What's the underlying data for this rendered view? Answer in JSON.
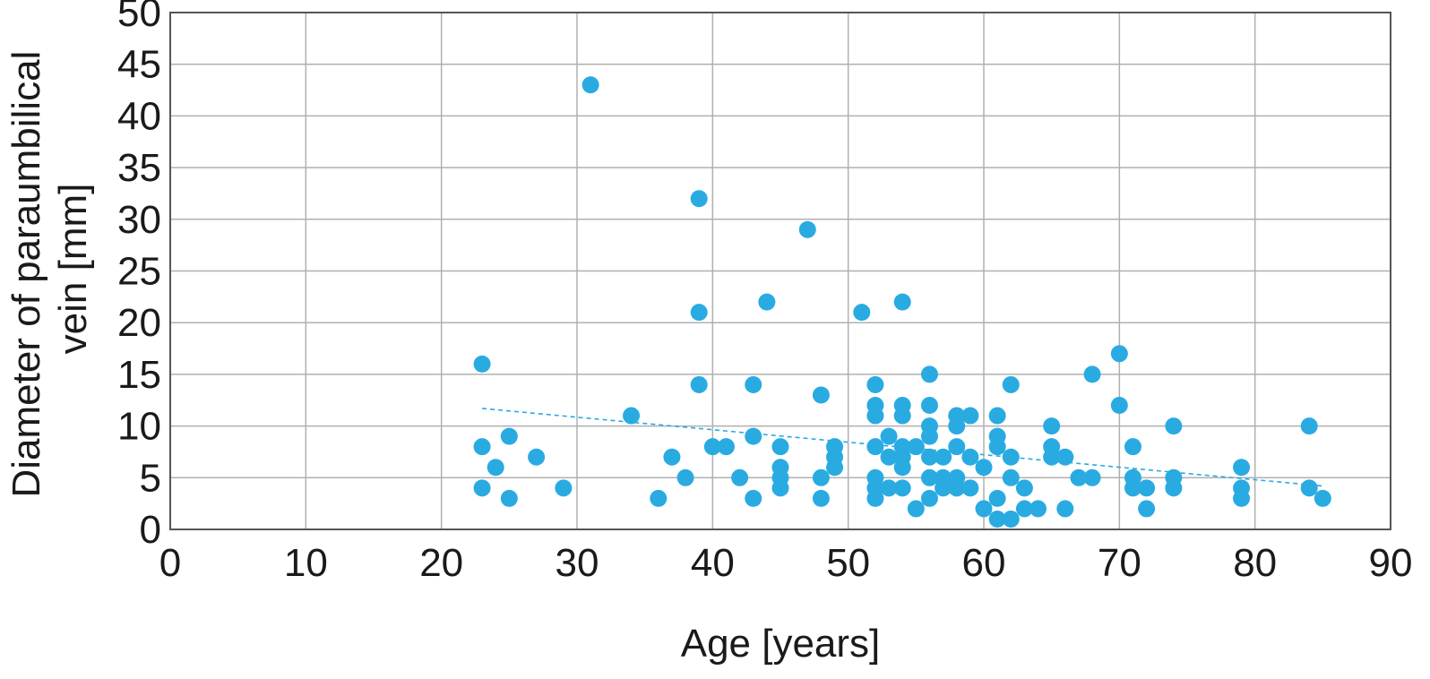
{
  "chart_data": {
    "type": "scatter",
    "title": "",
    "xlabel": "Age [years]",
    "ylabel_lines": [
      "Diameter of paraumbilical",
      "vein [mm]"
    ],
    "xlim": [
      0,
      90
    ],
    "ylim": [
      0,
      50
    ],
    "xticks": [
      "0",
      "10",
      "20",
      "30",
      "40",
      "50",
      "60",
      "70",
      "80",
      "90"
    ],
    "yticks": [
      "0",
      "5",
      "10",
      "15",
      "20",
      "25",
      "30",
      "35",
      "40",
      "45",
      "50"
    ],
    "grid": true,
    "legend": "none",
    "point_color": "#29abe2",
    "trend_color": "#29abe2",
    "trendline": {
      "style": "dashed",
      "x": [
        23,
        85
      ],
      "y": [
        11.7,
        4.2
      ]
    },
    "points": [
      {
        "x": 23,
        "y": 16
      },
      {
        "x": 23,
        "y": 8
      },
      {
        "x": 23,
        "y": 4
      },
      {
        "x": 24,
        "y": 6
      },
      {
        "x": 25,
        "y": 9
      },
      {
        "x": 25,
        "y": 3
      },
      {
        "x": 27,
        "y": 7
      },
      {
        "x": 29,
        "y": 4
      },
      {
        "x": 31,
        "y": 43
      },
      {
        "x": 34,
        "y": 11
      },
      {
        "x": 36,
        "y": 3
      },
      {
        "x": 37,
        "y": 7
      },
      {
        "x": 38,
        "y": 5
      },
      {
        "x": 39,
        "y": 32
      },
      {
        "x": 39,
        "y": 21
      },
      {
        "x": 39,
        "y": 14
      },
      {
        "x": 40,
        "y": 8
      },
      {
        "x": 41,
        "y": 8
      },
      {
        "x": 42,
        "y": 5
      },
      {
        "x": 43,
        "y": 14
      },
      {
        "x": 43,
        "y": 9
      },
      {
        "x": 43,
        "y": 3
      },
      {
        "x": 44,
        "y": 22
      },
      {
        "x": 45,
        "y": 8
      },
      {
        "x": 45,
        "y": 6
      },
      {
        "x": 45,
        "y": 5
      },
      {
        "x": 45,
        "y": 4
      },
      {
        "x": 47,
        "y": 29
      },
      {
        "x": 48,
        "y": 13
      },
      {
        "x": 48,
        "y": 5
      },
      {
        "x": 48,
        "y": 3
      },
      {
        "x": 49,
        "y": 8
      },
      {
        "x": 49,
        "y": 7
      },
      {
        "x": 49,
        "y": 6
      },
      {
        "x": 51,
        "y": 21
      },
      {
        "x": 52,
        "y": 14
      },
      {
        "x": 52,
        "y": 12
      },
      {
        "x": 52,
        "y": 11
      },
      {
        "x": 52,
        "y": 8
      },
      {
        "x": 52,
        "y": 5
      },
      {
        "x": 52,
        "y": 4
      },
      {
        "x": 52,
        "y": 3
      },
      {
        "x": 53,
        "y": 9
      },
      {
        "x": 53,
        "y": 7
      },
      {
        "x": 53,
        "y": 4
      },
      {
        "x": 54,
        "y": 22
      },
      {
        "x": 54,
        "y": 12
      },
      {
        "x": 54,
        "y": 11
      },
      {
        "x": 54,
        "y": 8
      },
      {
        "x": 54,
        "y": 7
      },
      {
        "x": 54,
        "y": 6
      },
      {
        "x": 54,
        "y": 4
      },
      {
        "x": 55,
        "y": 8
      },
      {
        "x": 55,
        "y": 2
      },
      {
        "x": 56,
        "y": 15
      },
      {
        "x": 56,
        "y": 12
      },
      {
        "x": 56,
        "y": 10
      },
      {
        "x": 56,
        "y": 9
      },
      {
        "x": 56,
        "y": 7
      },
      {
        "x": 56,
        "y": 5
      },
      {
        "x": 56,
        "y": 3
      },
      {
        "x": 57,
        "y": 7
      },
      {
        "x": 57,
        "y": 5
      },
      {
        "x": 57,
        "y": 4
      },
      {
        "x": 58,
        "y": 11
      },
      {
        "x": 58,
        "y": 10
      },
      {
        "x": 58,
        "y": 8
      },
      {
        "x": 58,
        "y": 5
      },
      {
        "x": 58,
        "y": 4
      },
      {
        "x": 59,
        "y": 11
      },
      {
        "x": 59,
        "y": 7
      },
      {
        "x": 59,
        "y": 4
      },
      {
        "x": 60,
        "y": 6
      },
      {
        "x": 60,
        "y": 2
      },
      {
        "x": 61,
        "y": 11
      },
      {
        "x": 61,
        "y": 9
      },
      {
        "x": 61,
        "y": 8
      },
      {
        "x": 61,
        "y": 3
      },
      {
        "x": 61,
        "y": 1
      },
      {
        "x": 62,
        "y": 14
      },
      {
        "x": 62,
        "y": 7
      },
      {
        "x": 62,
        "y": 5
      },
      {
        "x": 62,
        "y": 1
      },
      {
        "x": 63,
        "y": 4
      },
      {
        "x": 63,
        "y": 2
      },
      {
        "x": 64,
        "y": 2
      },
      {
        "x": 65,
        "y": 10
      },
      {
        "x": 65,
        "y": 8
      },
      {
        "x": 65,
        "y": 7
      },
      {
        "x": 66,
        "y": 7
      },
      {
        "x": 66,
        "y": 2
      },
      {
        "x": 67,
        "y": 5
      },
      {
        "x": 68,
        "y": 15
      },
      {
        "x": 68,
        "y": 5
      },
      {
        "x": 70,
        "y": 17
      },
      {
        "x": 70,
        "y": 12
      },
      {
        "x": 71,
        "y": 8
      },
      {
        "x": 71,
        "y": 5
      },
      {
        "x": 71,
        "y": 4
      },
      {
        "x": 72,
        "y": 4
      },
      {
        "x": 72,
        "y": 2
      },
      {
        "x": 74,
        "y": 10
      },
      {
        "x": 74,
        "y": 5
      },
      {
        "x": 74,
        "y": 4
      },
      {
        "x": 79,
        "y": 6
      },
      {
        "x": 79,
        "y": 4
      },
      {
        "x": 79,
        "y": 3
      },
      {
        "x": 84,
        "y": 10
      },
      {
        "x": 84,
        "y": 4
      },
      {
        "x": 85,
        "y": 3
      }
    ]
  }
}
